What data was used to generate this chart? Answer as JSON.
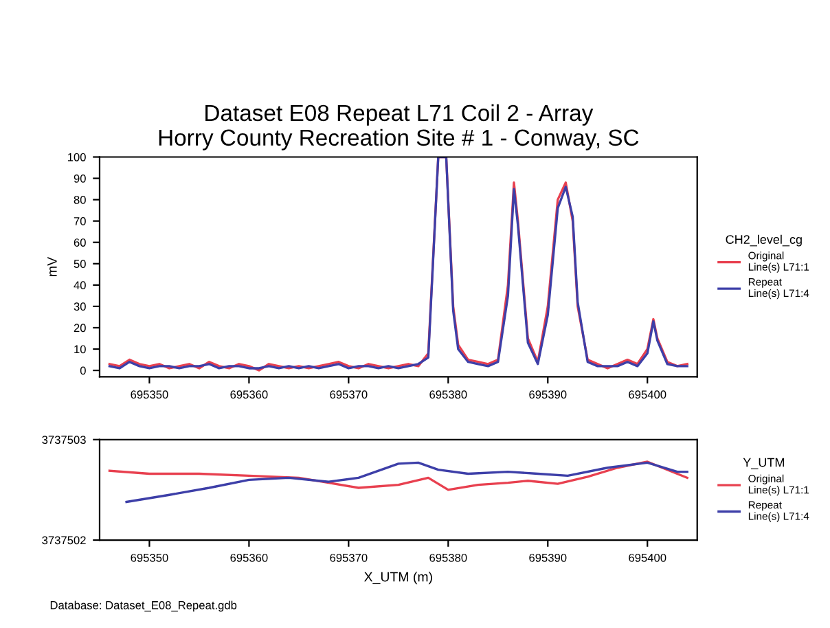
{
  "chart_data": [
    {
      "type": "line",
      "title": "Dataset E08 Repeat L71 Coil 2 - Array\nHorry County Recreation Site # 1 - Conway, SC",
      "ylabel": "mV",
      "legend_title": "CH2_level_cg",
      "legend": "right",
      "grid": false,
      "xlim": [
        695345,
        695405
      ],
      "xticks": [
        695350,
        695360,
        695370,
        695380,
        695390,
        695400
      ],
      "ylim": [
        -3,
        100
      ],
      "yticks": [
        0,
        10,
        20,
        30,
        40,
        50,
        60,
        70,
        80,
        90,
        100
      ],
      "series": [
        {
          "name": "Original\nLine(s) L71:1",
          "color": "#e8404f",
          "x": [
            695346,
            695347,
            695348,
            695349,
            695350,
            695351,
            695352,
            695353,
            695354,
            695355,
            695356,
            695357,
            695358,
            695359,
            695360,
            695361,
            695362,
            695363,
            695364,
            695365,
            695366,
            695367,
            695368,
            695369,
            695370,
            695371,
            695372,
            695373,
            695374,
            695375,
            695376,
            695377,
            695378,
            695379,
            695379.8,
            695380.5,
            695381,
            695382,
            695383,
            695384,
            695385,
            695386,
            695386.6,
            695387,
            695388,
            695389,
            695390,
            695391,
            695391.8,
            695392.5,
            695393,
            695394,
            695395,
            695396,
            695397,
            695398,
            695399,
            695400,
            695400.6,
            695401,
            695402,
            695403,
            695404
          ],
          "values": [
            3,
            2,
            5,
            3,
            2,
            3,
            1,
            2,
            3,
            1,
            4,
            2,
            1,
            3,
            2,
            0,
            3,
            2,
            1,
            2,
            1,
            2,
            3,
            4,
            2,
            1,
            3,
            2,
            1,
            2,
            3,
            2,
            8,
            100,
            100,
            30,
            12,
            5,
            4,
            3,
            5,
            40,
            88,
            70,
            15,
            4,
            30,
            80,
            88,
            70,
            30,
            5,
            3,
            1,
            3,
            5,
            3,
            10,
            24,
            15,
            4,
            2,
            3
          ]
        },
        {
          "name": "Repeat\nLine(s) L71:4",
          "color": "#3d3fa8",
          "x": [
            695346,
            695347,
            695348,
            695349,
            695350,
            695351,
            695352,
            695353,
            695354,
            695355,
            695356,
            695357,
            695358,
            695359,
            695360,
            695361,
            695362,
            695363,
            695364,
            695365,
            695366,
            695367,
            695368,
            695369,
            695370,
            695371,
            695372,
            695373,
            695374,
            695375,
            695376,
            695377,
            695378,
            695379,
            695379.8,
            695380.5,
            695381,
            695382,
            695383,
            695384,
            695385,
            695386,
            695386.6,
            695387,
            695388,
            695389,
            695390,
            695391,
            695391.8,
            695392.5,
            695393,
            695394,
            695395,
            695396,
            695397,
            695398,
            695399,
            695400,
            695400.6,
            695401,
            695402,
            695403,
            695404
          ],
          "values": [
            2,
            1,
            4,
            2,
            1,
            2,
            2,
            1,
            2,
            2,
            3,
            1,
            2,
            2,
            1,
            1,
            2,
            1,
            2,
            1,
            2,
            1,
            2,
            3,
            1,
            2,
            2,
            1,
            2,
            1,
            2,
            3,
            6,
            100,
            100,
            28,
            10,
            4,
            3,
            2,
            4,
            35,
            85,
            68,
            13,
            3,
            26,
            76,
            86,
            72,
            32,
            4,
            2,
            2,
            2,
            4,
            2,
            8,
            23,
            14,
            3,
            2,
            2
          ]
        }
      ]
    },
    {
      "type": "line",
      "xlabel": "X_UTM (m)",
      "legend_title": "Y_UTM",
      "legend": "right",
      "grid": false,
      "xlim": [
        695345,
        695405
      ],
      "xticks": [
        695350,
        695360,
        695370,
        695380,
        695390,
        695400
      ],
      "ylim": [
        3737502,
        3737503
      ],
      "yticks": [
        3737502,
        3737503
      ],
      "annotations": [
        "Database: Dataset_E08_Repeat.gdb"
      ],
      "series": [
        {
          "name": "Original\nLine(s) L71:1",
          "color": "#e8404f",
          "x": [
            695346,
            695350,
            695355,
            695360,
            695365,
            695368,
            695371,
            695375,
            695378,
            695380,
            695383,
            695386,
            695388,
            695391,
            695394,
            695397,
            695400,
            695402,
            695404
          ],
          "values": [
            3737502.69,
            3737502.66,
            3737502.66,
            3737502.64,
            3737502.62,
            3737502.57,
            3737502.52,
            3737502.55,
            3737502.62,
            3737502.5,
            3737502.55,
            3737502.57,
            3737502.59,
            3737502.56,
            3737502.63,
            3737502.72,
            3737502.78,
            3737502.7,
            3737502.62
          ]
        },
        {
          "name": "Repeat\nLine(s) L71:4",
          "color": "#3d3fa8",
          "x": [
            695347.7,
            695352,
            695356,
            695360,
            695364,
            695368,
            695371,
            695375,
            695377,
            695379,
            695382,
            695386,
            695389,
            695392,
            695396,
            695400,
            695403,
            695404
          ],
          "values": [
            3737502.38,
            3737502.45,
            3737502.52,
            3737502.6,
            3737502.62,
            3737502.58,
            3737502.62,
            3737502.76,
            3737502.77,
            3737502.7,
            3737502.66,
            3737502.68,
            3737502.66,
            3737502.64,
            3737502.72,
            3737502.77,
            3737502.68,
            3737502.68
          ]
        }
      ]
    }
  ]
}
